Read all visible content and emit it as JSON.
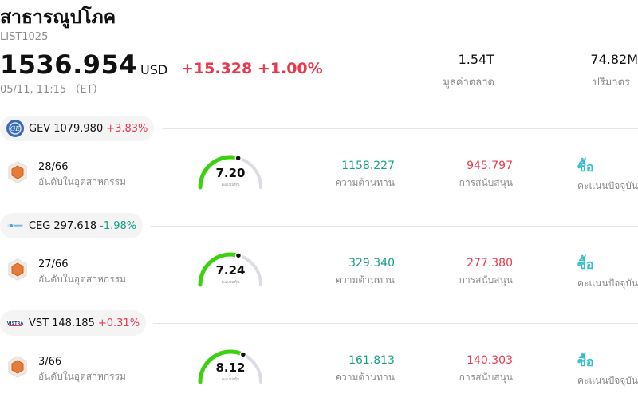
{
  "header": {
    "title": "สาธารณูปโภค",
    "code": "LIST1025",
    "price": "1536.954",
    "currency": "USD",
    "change": "+15.328 +1.00%",
    "timestamp": "05/11, 11:15 （ET）",
    "market_cap_value": "1.54T",
    "market_cap_label": "มูลค่าตลาด",
    "volume_value": "74.82M",
    "volume_label": "ปริมาตร"
  },
  "colors": {
    "up": "#e8394d",
    "down": "#15a085",
    "buy": "#36bdd0",
    "gauge": "#3ad10e"
  },
  "stocks": [
    {
      "ticker": "GEV",
      "price": "1079.980",
      "change": "+3.83%",
      "direction": "up",
      "rank": "28/66",
      "rank_label": "อันดับในอุตสาหกรรม",
      "score": "7.20",
      "score_label": "คะแนนหุ้น",
      "resistance": "1158.227",
      "resistance_label": "ความต้านทาน",
      "support": "945.797",
      "support_label": "การสนับสนุน",
      "rating": "ซื้อ",
      "rating_label": "คะแนนปัจจุบัน"
    },
    {
      "ticker": "CEG",
      "price": "297.618",
      "change": "-1.98%",
      "direction": "down",
      "rank": "27/66",
      "rank_label": "อันดับในอุตสาหกรรม",
      "score": "7.24",
      "score_label": "คะแนนหุ้น",
      "resistance": "329.340",
      "resistance_label": "ความต้านทาน",
      "support": "277.380",
      "support_label": "การสนับสนุน",
      "rating": "ซื้อ",
      "rating_label": "คะแนนปัจจุบัน"
    },
    {
      "ticker": "VST",
      "price": "148.185",
      "change": "+0.31%",
      "direction": "up",
      "rank": "3/66",
      "rank_label": "อันดับในอุตสาหกรรม",
      "score": "8.12",
      "score_label": "คะแนนหุ้น",
      "resistance": "161.813",
      "resistance_label": "ความต้านทาน",
      "support": "140.303",
      "support_label": "การสนับสนุน",
      "rating": "ซื้อ",
      "rating_label": "คะแนนปัจจุบัน"
    }
  ]
}
